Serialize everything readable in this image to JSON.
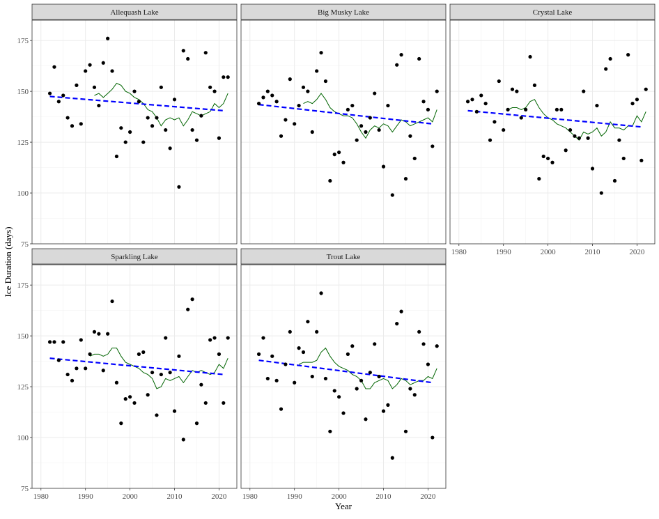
{
  "chart_data": {
    "type": "scatter",
    "ylabel": "Ice Duration (days)",
    "xlabel": "Year",
    "xlim": [
      1978,
      2024
    ],
    "ylim": [
      75,
      185
    ],
    "x_ticks": [
      1980,
      1990,
      2000,
      2010,
      2020
    ],
    "y_ticks": [
      75,
      100,
      125,
      150,
      175
    ],
    "grid": true,
    "colors": {
      "points": "#000000",
      "moving_average": "#006400",
      "trend": "#0000ff",
      "strip": "#d9d9d9",
      "grid": "#ebebeb"
    },
    "panels": [
      {
        "title": "Allequash Lake",
        "x": [
          1982,
          1983,
          1984,
          1985,
          1986,
          1987,
          1988,
          1989,
          1990,
          1991,
          1992,
          1993,
          1994,
          1995,
          1996,
          1997,
          1998,
          1999,
          2000,
          2001,
          2002,
          2003,
          2004,
          2005,
          2006,
          2007,
          2008,
          2009,
          2010,
          2011,
          2012,
          2013,
          2014,
          2015,
          2016,
          2017,
          2018,
          2019,
          2020,
          2021,
          2022
        ],
        "y": [
          149,
          162,
          145,
          148,
          137,
          133,
          153,
          134,
          160,
          163,
          152,
          143,
          164,
          176,
          160,
          118,
          132,
          125,
          130,
          150,
          145,
          125,
          137,
          133,
          137,
          152,
          131,
          122,
          146,
          103,
          170,
          166,
          131,
          126,
          138,
          169,
          152,
          150,
          127,
          157,
          157
        ],
        "moving_average": [
          [
            1992,
            148
          ],
          [
            1993,
            149
          ],
          [
            1994,
            147
          ],
          [
            1995,
            149
          ],
          [
            1996,
            151
          ],
          [
            1997,
            154
          ],
          [
            1998,
            153
          ],
          [
            1999,
            150
          ],
          [
            2000,
            149
          ],
          [
            2001,
            147
          ],
          [
            2002,
            146
          ],
          [
            2003,
            144
          ],
          [
            2004,
            141
          ],
          [
            2005,
            140
          ],
          [
            2006,
            137
          ],
          [
            2007,
            133
          ],
          [
            2008,
            136
          ],
          [
            2009,
            137
          ],
          [
            2010,
            136
          ],
          [
            2011,
            137
          ],
          [
            2012,
            133
          ],
          [
            2013,
            136
          ],
          [
            2014,
            140
          ],
          [
            2015,
            139
          ],
          [
            2016,
            138
          ],
          [
            2017,
            139
          ],
          [
            2018,
            140
          ],
          [
            2019,
            144
          ],
          [
            2020,
            142
          ],
          [
            2021,
            144
          ],
          [
            2022,
            149
          ]
        ],
        "trend": [
          [
            1982,
            147.5
          ],
          [
            2021,
            140.5
          ]
        ]
      },
      {
        "title": "Big Musky Lake",
        "x": [
          1982,
          1983,
          1984,
          1985,
          1986,
          1987,
          1988,
          1989,
          1990,
          1991,
          1992,
          1993,
          1994,
          1995,
          1996,
          1997,
          1998,
          1999,
          2000,
          2001,
          2002,
          2003,
          2004,
          2005,
          2006,
          2007,
          2008,
          2009,
          2010,
          2011,
          2012,
          2013,
          2014,
          2015,
          2016,
          2017,
          2018,
          2019,
          2020,
          2021,
          2022
        ],
        "y": [
          144,
          147,
          150,
          148,
          145,
          128,
          136,
          156,
          134,
          143,
          152,
          150,
          130,
          160,
          169,
          155,
          106,
          119,
          120,
          115,
          141,
          143,
          126,
          133,
          130,
          137,
          149,
          131,
          113,
          143,
          99,
          163,
          168,
          107,
          128,
          117,
          166,
          145,
          141,
          123,
          150
        ],
        "moving_average": [
          [
            1992,
            144
          ],
          [
            1993,
            145
          ],
          [
            1994,
            144
          ],
          [
            1995,
            146
          ],
          [
            1996,
            149
          ],
          [
            1997,
            146
          ],
          [
            1998,
            142
          ],
          [
            1999,
            140
          ],
          [
            2000,
            139
          ],
          [
            2001,
            138
          ],
          [
            2002,
            138
          ],
          [
            2003,
            137
          ],
          [
            2004,
            134
          ],
          [
            2005,
            130
          ],
          [
            2006,
            127
          ],
          [
            2007,
            131
          ],
          [
            2008,
            133
          ],
          [
            2009,
            132
          ],
          [
            2010,
            134
          ],
          [
            2011,
            133
          ],
          [
            2012,
            130
          ],
          [
            2013,
            133
          ],
          [
            2014,
            136
          ],
          [
            2015,
            135
          ],
          [
            2016,
            133
          ],
          [
            2017,
            134
          ],
          [
            2018,
            135
          ],
          [
            2019,
            136
          ],
          [
            2020,
            137
          ],
          [
            2021,
            135
          ],
          [
            2022,
            141
          ]
        ],
        "trend": [
          [
            1982,
            143.5
          ],
          [
            2021,
            134
          ]
        ]
      },
      {
        "title": "Crystal Lake",
        "x": [
          1982,
          1983,
          1984,
          1985,
          1986,
          1987,
          1988,
          1989,
          1990,
          1991,
          1992,
          1993,
          1994,
          1995,
          1996,
          1997,
          1998,
          1999,
          2000,
          2001,
          2002,
          2003,
          2004,
          2005,
          2006,
          2007,
          2008,
          2009,
          2010,
          2011,
          2012,
          2013,
          2014,
          2015,
          2016,
          2017,
          2018,
          2019,
          2020,
          2021,
          2022
        ],
        "y": [
          145,
          146,
          140,
          148,
          144,
          126,
          135,
          155,
          131,
          141,
          151,
          150,
          137,
          141,
          167,
          153,
          107,
          118,
          117,
          115,
          141,
          141,
          121,
          131,
          128,
          127,
          150,
          127,
          112,
          143,
          100,
          161,
          166,
          106,
          126,
          117,
          168,
          144,
          146,
          116,
          151
        ],
        "moving_average": [
          [
            1991,
            141
          ],
          [
            1992,
            142
          ],
          [
            1993,
            142
          ],
          [
            1994,
            141
          ],
          [
            1995,
            142
          ],
          [
            1996,
            145
          ],
          [
            1997,
            146
          ],
          [
            1998,
            142
          ],
          [
            1999,
            139
          ],
          [
            2000,
            137
          ],
          [
            2001,
            136
          ],
          [
            2002,
            134
          ],
          [
            2003,
            133
          ],
          [
            2004,
            132
          ],
          [
            2005,
            130
          ],
          [
            2006,
            128
          ],
          [
            2007,
            126
          ],
          [
            2008,
            130
          ],
          [
            2009,
            129
          ],
          [
            2010,
            130
          ],
          [
            2011,
            132
          ],
          [
            2012,
            128
          ],
          [
            2013,
            130
          ],
          [
            2014,
            135
          ],
          [
            2015,
            132
          ],
          [
            2016,
            132
          ],
          [
            2017,
            131
          ],
          [
            2018,
            133
          ],
          [
            2019,
            133
          ],
          [
            2020,
            138
          ],
          [
            2021,
            135
          ],
          [
            2022,
            140
          ]
        ],
        "trend": [
          [
            1982,
            140.5
          ],
          [
            2021,
            132.5
          ]
        ]
      },
      {
        "title": "Sparkling Lake",
        "x": [
          1982,
          1983,
          1984,
          1985,
          1986,
          1987,
          1988,
          1989,
          1990,
          1991,
          1992,
          1993,
          1994,
          1995,
          1996,
          1997,
          1998,
          1999,
          2000,
          2001,
          2002,
          2003,
          2004,
          2005,
          2006,
          2007,
          2008,
          2009,
          2010,
          2011,
          2012,
          2013,
          2014,
          2015,
          2016,
          2017,
          2018,
          2019,
          2020,
          2021,
          2022
        ],
        "y": [
          147,
          147,
          138,
          147,
          131,
          128,
          134,
          148,
          134,
          141,
          152,
          151,
          133,
          151,
          167,
          127,
          107,
          119,
          120,
          117,
          141,
          142,
          121,
          132,
          111,
          131,
          149,
          132,
          113,
          140,
          99,
          163,
          168,
          107,
          126,
          117,
          148,
          149,
          141,
          117,
          149
        ],
        "moving_average": [
          [
            1991,
            140
          ],
          [
            1992,
            141
          ],
          [
            1993,
            141
          ],
          [
            1994,
            140
          ],
          [
            1995,
            141
          ],
          [
            1996,
            144
          ],
          [
            1997,
            144
          ],
          [
            1998,
            140
          ],
          [
            1999,
            137
          ],
          [
            2000,
            136
          ],
          [
            2001,
            135
          ],
          [
            2002,
            134
          ],
          [
            2003,
            132
          ],
          [
            2004,
            131
          ],
          [
            2005,
            129
          ],
          [
            2006,
            124
          ],
          [
            2007,
            125
          ],
          [
            2008,
            129
          ],
          [
            2009,
            128
          ],
          [
            2010,
            129
          ],
          [
            2011,
            130
          ],
          [
            2012,
            127
          ],
          [
            2013,
            130
          ],
          [
            2014,
            133
          ],
          [
            2015,
            132
          ],
          [
            2016,
            133
          ],
          [
            2017,
            132
          ],
          [
            2018,
            131
          ],
          [
            2019,
            132
          ],
          [
            2020,
            136
          ],
          [
            2021,
            134
          ],
          [
            2022,
            139
          ]
        ],
        "trend": [
          [
            1982,
            139
          ],
          [
            2021,
            131
          ]
        ]
      },
      {
        "title": "Trout Lake",
        "x": [
          1982,
          1983,
          1984,
          1985,
          1986,
          1987,
          1988,
          1989,
          1990,
          1991,
          1992,
          1993,
          1994,
          1995,
          1996,
          1997,
          1998,
          1999,
          2000,
          2001,
          2002,
          2003,
          2004,
          2005,
          2006,
          2007,
          2008,
          2009,
          2010,
          2011,
          2012,
          2013,
          2014,
          2015,
          2016,
          2017,
          2018,
          2019,
          2020,
          2021,
          2022
        ],
        "y": [
          141,
          149,
          129,
          140,
          128,
          114,
          136,
          152,
          127,
          144,
          142,
          157,
          130,
          152,
          171,
          129,
          103,
          123,
          120,
          112,
          141,
          145,
          124,
          128,
          109,
          132,
          146,
          130,
          113,
          116,
          90,
          156,
          162,
          103,
          124,
          121,
          152,
          146,
          136,
          100,
          145
        ],
        "moving_average": [
          [
            1991,
            136
          ],
          [
            1992,
            137
          ],
          [
            1993,
            137
          ],
          [
            1994,
            137
          ],
          [
            1995,
            138
          ],
          [
            1996,
            142
          ],
          [
            1997,
            144
          ],
          [
            1998,
            140
          ],
          [
            1999,
            137
          ],
          [
            2000,
            135
          ],
          [
            2001,
            134
          ],
          [
            2002,
            133
          ],
          [
            2003,
            131
          ],
          [
            2004,
            130
          ],
          [
            2005,
            128
          ],
          [
            2006,
            124
          ],
          [
            2007,
            124
          ],
          [
            2008,
            127
          ],
          [
            2009,
            128
          ],
          [
            2010,
            129
          ],
          [
            2011,
            128
          ],
          [
            2012,
            124
          ],
          [
            2013,
            126
          ],
          [
            2014,
            129
          ],
          [
            2015,
            128
          ],
          [
            2016,
            126
          ],
          [
            2017,
            127
          ],
          [
            2018,
            128
          ],
          [
            2019,
            128
          ],
          [
            2020,
            130
          ],
          [
            2021,
            129
          ],
          [
            2022,
            134
          ]
        ],
        "trend": [
          [
            1982,
            138
          ],
          [
            2021,
            127
          ]
        ]
      }
    ]
  }
}
